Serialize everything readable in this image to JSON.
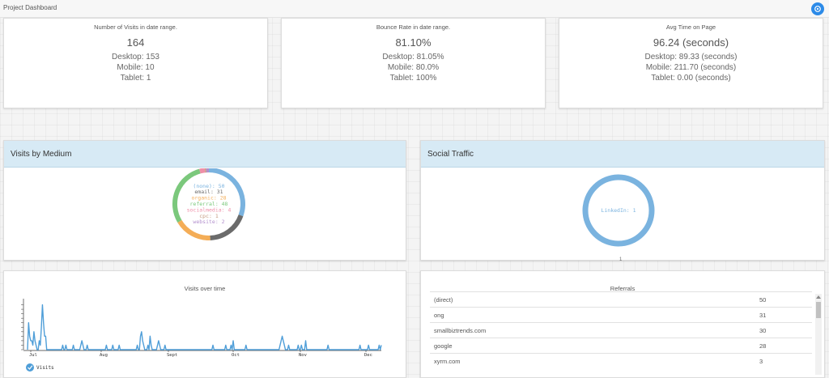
{
  "header": {
    "title": "Project Dashboard"
  },
  "stats": [
    {
      "label": "Number of Visits in date range.",
      "value": "164",
      "lines": [
        "Desktop: 153",
        "Mobile: 10",
        "Tablet: 1"
      ]
    },
    {
      "label": "Bounce Rate in date range.",
      "value": "81.10%",
      "lines": [
        "Desktop: 81.05%",
        "Mobile: 80.0%",
        "Tablet: 100%"
      ]
    },
    {
      "label": "Avg Time on Page",
      "value": "96.24 (seconds)",
      "lines": [
        "Desktop: 89.33 (seconds)",
        "Mobile: 211.70 (seconds)",
        "Tablet: 0.00 (seconds)"
      ]
    }
  ],
  "panels": {
    "medium_title": "Visits by Medium",
    "social_title": "Social Traffic"
  },
  "colors": {
    "accent": "#2d8be8",
    "panel_header": "#d7eaf5",
    "line": "#4f9ed8"
  },
  "chart_data": [
    {
      "type": "pie",
      "slices": [
        {
          "label": "(none)",
          "value": 50,
          "color": "#7ab3df",
          "text": "(none): 50"
        },
        {
          "label": "email",
          "value": 31,
          "color": "#6b6b6b",
          "text": "email: 31"
        },
        {
          "label": "organic",
          "value": 28,
          "color": "#f4ad57",
          "text": "organic: 28"
        },
        {
          "label": "referral",
          "value": 48,
          "color": "#7bc87c",
          "text": "referral: 48"
        },
        {
          "label": "socialmedia",
          "value": 4,
          "color": "#ef8fa8",
          "text": "socialmedia: 4"
        },
        {
          "label": "cpc",
          "value": 1,
          "color": "#c59b82",
          "text": "cpc: 1"
        },
        {
          "label": "website",
          "value": 2,
          "color": "#b28fcd",
          "text": "website: 2"
        }
      ]
    },
    {
      "type": "pie",
      "slices": [
        {
          "label": "LinkedIn",
          "value": 1,
          "color": "#7ab3df",
          "text": "LinkedIn: 1"
        }
      ],
      "footnote": "1"
    },
    {
      "type": "line",
      "title": "Visits over time",
      "x_labels": [
        "Jul",
        "Aug",
        "Sept",
        "Oct",
        "Nov",
        "Dec"
      ],
      "series": [
        {
          "name": "Visits",
          "values": [
            0,
            6,
            3,
            2,
            2,
            1,
            4,
            2,
            1,
            0,
            0,
            2,
            1,
            5,
            10,
            6,
            3,
            3,
            0,
            0,
            0,
            0,
            0,
            0,
            0,
            0,
            0,
            0,
            0,
            0,
            0,
            0,
            0,
            1,
            0,
            0,
            1,
            0,
            0,
            0,
            0,
            0,
            0,
            1,
            0,
            0,
            0,
            0,
            0,
            0,
            1,
            2,
            1,
            0,
            0,
            0,
            1,
            0,
            0,
            0,
            0,
            0,
            0,
            0,
            0,
            0,
            0,
            0,
            0,
            0,
            0,
            0,
            0,
            0,
            1,
            0,
            0,
            0,
            0,
            0,
            1,
            0,
            0,
            0,
            0,
            0,
            1,
            0,
            0,
            0,
            0,
            0,
            0,
            0,
            0,
            0,
            0,
            0,
            0,
            0,
            0,
            0,
            0,
            1,
            0,
            0,
            3,
            4,
            2,
            1,
            0,
            0,
            0,
            1,
            0,
            3,
            1,
            0,
            0,
            0,
            0,
            0,
            1,
            2,
            1,
            0,
            0,
            0,
            0,
            1,
            0,
            0,
            0,
            0,
            0,
            0,
            0,
            0,
            0,
            0,
            0,
            0,
            0,
            0,
            0,
            0,
            0,
            0,
            0,
            0,
            0,
            0,
            0,
            0,
            0,
            0,
            0,
            0,
            0,
            0,
            0,
            0,
            0,
            0,
            0,
            0,
            0,
            0,
            0,
            0,
            0,
            0,
            0,
            0,
            1,
            0,
            0,
            0,
            0,
            0,
            0,
            0,
            0,
            0,
            0,
            0,
            1,
            0,
            0,
            0,
            0,
            1,
            0,
            2,
            0,
            0,
            0,
            0,
            0,
            0,
            0,
            0,
            0,
            0,
            0,
            1,
            0,
            0,
            0,
            0,
            0,
            0,
            0,
            0,
            0,
            0,
            0,
            0,
            0,
            0,
            0,
            0,
            0,
            0,
            0,
            0,
            0,
            0,
            0,
            0,
            0,
            0,
            0,
            0,
            0,
            0,
            0,
            1,
            2,
            3,
            2,
            1,
            0,
            0,
            0,
            1,
            0,
            0,
            0,
            0,
            0,
            0,
            0,
            0,
            1,
            0,
            0,
            1,
            0,
            0,
            0,
            2,
            0,
            0,
            0,
            0,
            0,
            0,
            0,
            0,
            0,
            0,
            0,
            0,
            0,
            0,
            0,
            0,
            0,
            0,
            0,
            0,
            1,
            0,
            0,
            0,
            0,
            0,
            0,
            0,
            0,
            0,
            0,
            0,
            0,
            0,
            0,
            0,
            0,
            0,
            0,
            0,
            0,
            0,
            0,
            0,
            0,
            0,
            0,
            0,
            0,
            0,
            1,
            0,
            0,
            0,
            0,
            0,
            0,
            0,
            1,
            0,
            0,
            0,
            0,
            0,
            0,
            0,
            0,
            0,
            1,
            0,
            1
          ]
        }
      ]
    }
  ],
  "referrals": {
    "title": "Referrals",
    "rows": [
      {
        "source": "(direct)",
        "count": "50"
      },
      {
        "source": "ong",
        "count": "31"
      },
      {
        "source": "smallbiztrends.com",
        "count": "30"
      },
      {
        "source": "google",
        "count": "28"
      },
      {
        "source": "xyrm.com",
        "count": "3"
      }
    ]
  }
}
